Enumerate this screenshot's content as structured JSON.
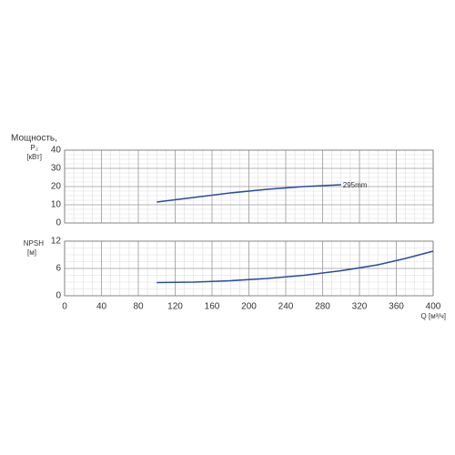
{
  "chart_data": [
    {
      "type": "line",
      "ylabel": "Мощность,",
      "ylabel_symbol": "P₂",
      "ylabel_unit": "[кВт]",
      "xlim": [
        0,
        400
      ],
      "xticks": [
        0,
        40,
        80,
        120,
        160,
        200,
        240,
        280,
        320,
        360,
        400
      ],
      "ylim": [
        0,
        40
      ],
      "yticks": [
        0,
        10,
        20,
        30,
        40
      ],
      "grid": true,
      "x": [
        100,
        140,
        180,
        220,
        260,
        300
      ],
      "series": [
        {
          "name": "295mm",
          "color": "#2a4d9b",
          "values": [
            11.5,
            14,
            16.5,
            18.5,
            20,
            21
          ]
        }
      ]
    },
    {
      "type": "line",
      "ylabel": "NPSH",
      "ylabel_unit": "[м]",
      "xlabel": "Q [м³/ч]",
      "xlim": [
        0,
        400
      ],
      "xticks": [
        0,
        40,
        80,
        120,
        160,
        200,
        240,
        280,
        320,
        360,
        400
      ],
      "ylim": [
        0,
        12
      ],
      "yticks": [
        0,
        6,
        12
      ],
      "grid": true,
      "x": [
        100,
        140,
        180,
        220,
        260,
        300,
        340,
        370,
        400
      ],
      "series": [
        {
          "color": "#2a4d9b",
          "values": [
            2.9,
            3.0,
            3.3,
            3.8,
            4.5,
            5.5,
            6.8,
            8.2,
            9.8
          ]
        }
      ]
    }
  ]
}
